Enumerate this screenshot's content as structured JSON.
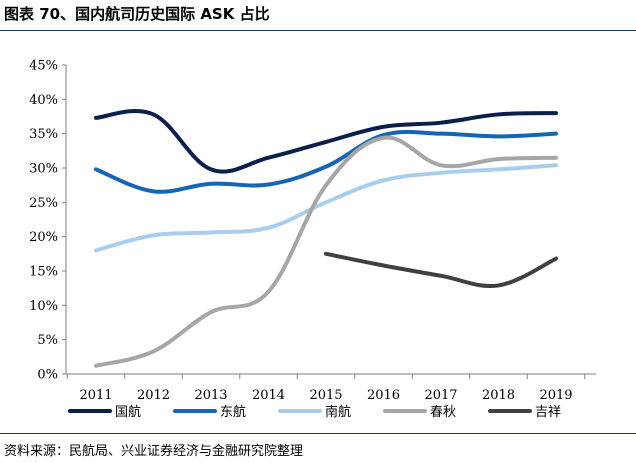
{
  "header": {
    "title": "图表 70、国内航司历史国际 ASK 占比"
  },
  "footer": {
    "source": "资料来源：民航局、兴业证券经济与金融研究院整理"
  },
  "chart_data": {
    "type": "line",
    "title": "",
    "xlabel": "",
    "ylabel": "",
    "x": [
      2011,
      2012,
      2013,
      2014,
      2015,
      2016,
      2017,
      2018,
      2019
    ],
    "ylim": [
      0,
      45
    ],
    "yticks": [
      0,
      5,
      10,
      15,
      20,
      25,
      30,
      35,
      40,
      45
    ],
    "ytick_labels": [
      "0%",
      "5%",
      "10%",
      "15%",
      "20%",
      "25%",
      "30%",
      "35%",
      "40%",
      "45%"
    ],
    "grid": false,
    "smooth": true,
    "legend_position": "bottom",
    "series": [
      {
        "name": "国航",
        "color": "#0b1f4b",
        "values": [
          37.3,
          37.8,
          29.8,
          31.5,
          33.8,
          36.0,
          36.6,
          37.8,
          38.0
        ]
      },
      {
        "name": "东航",
        "color": "#1565b5",
        "values": [
          29.8,
          26.6,
          27.7,
          27.6,
          30.2,
          34.8,
          35.0,
          34.6,
          35.0
        ]
      },
      {
        "name": "南航",
        "color": "#a9cdee",
        "values": [
          18.0,
          20.2,
          20.6,
          21.3,
          25.0,
          28.2,
          29.3,
          29.8,
          30.4
        ]
      },
      {
        "name": "春秋",
        "color": "#a6a6a6",
        "values": [
          1.2,
          3.3,
          9.0,
          12.0,
          27.5,
          34.4,
          30.4,
          31.3,
          31.5
        ]
      },
      {
        "name": "吉祥",
        "color": "#404040",
        "values": [
          null,
          null,
          null,
          null,
          17.5,
          15.8,
          14.3,
          12.9,
          16.8
        ]
      }
    ]
  }
}
